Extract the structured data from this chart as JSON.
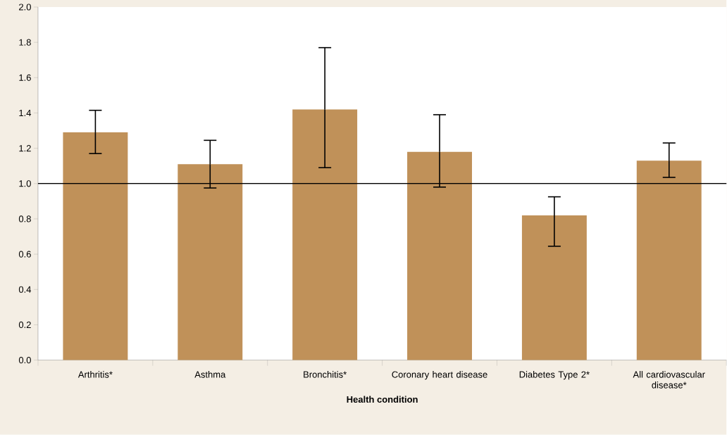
{
  "chart_data": {
    "type": "bar",
    "xlabel": "Health condition",
    "categories": [
      "Arthritis*",
      "Asthma",
      "Bronchitis*",
      "Coronary heart disease",
      "Diabetes Type 2*",
      "All cardiovascular disease*"
    ],
    "values": [
      1.29,
      1.11,
      1.42,
      1.18,
      0.82,
      1.13
    ],
    "errors": [
      [
        1.17,
        1.415
      ],
      [
        0.975,
        1.245
      ],
      [
        1.09,
        1.77
      ],
      [
        0.98,
        1.39
      ],
      [
        0.645,
        0.925
      ],
      [
        1.035,
        1.23
      ]
    ],
    "color": "#c09159",
    "ylim": [
      0,
      2
    ],
    "yticks": [
      {
        "value": 0,
        "label": "0.0"
      },
      {
        "value": 0.2,
        "label": "0.2"
      },
      {
        "value": 0.4,
        "label": "0.4"
      },
      {
        "value": 0.6,
        "label": "0.6"
      },
      {
        "value": 0.8,
        "label": "0.8"
      },
      {
        "value": 1,
        "label": "1.0"
      },
      {
        "value": 1.2,
        "label": "1.2"
      },
      {
        "value": 1.4,
        "label": "1.4"
      },
      {
        "value": 1.6,
        "label": "1.6"
      },
      {
        "value": 1.8,
        "label": "1.8"
      },
      {
        "value": 2,
        "label": "2.0"
      }
    ],
    "ref_lines": [
      {
        "axis": "y",
        "value": 1,
        "color": "#000000"
      }
    ]
  }
}
